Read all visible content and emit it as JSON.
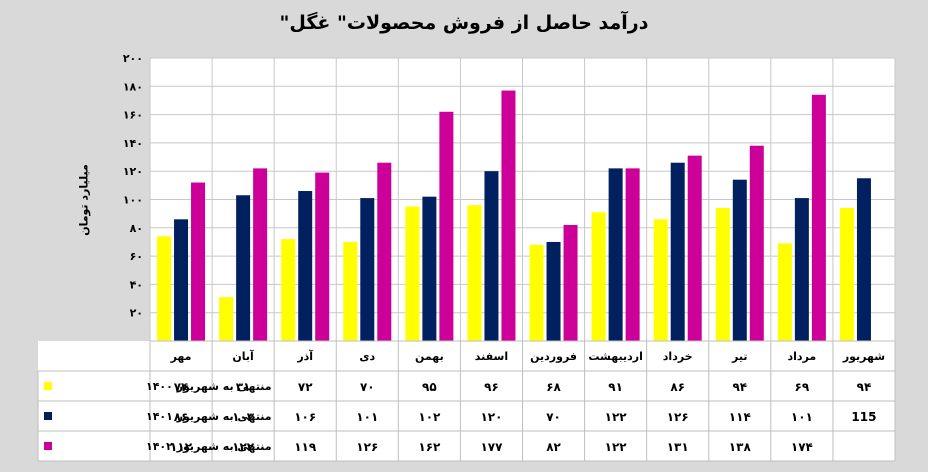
{
  "chart_data": {
    "type": "bar",
    "title": "درآمد حاصل از فروش محصولات\" غگل\"",
    "ylabel": "میلیارد تومان",
    "ylim": [
      0,
      200
    ],
    "ytick_values": [
      0,
      20,
      40,
      60,
      80,
      100,
      120,
      140,
      160,
      180,
      200
    ],
    "ytick_labels": [
      "۰",
      "۲۰",
      "۴۰",
      "۶۰",
      "۸۰",
      "۱۰۰",
      "۱۲۰",
      "۱۴۰",
      "۱۶۰",
      "۱۸۰",
      "۲۰۰"
    ],
    "categories": [
      "مهر",
      "آبان",
      "آذر",
      "دی",
      "بهمن",
      "اسفند",
      "فروردین",
      "اردیبهشت",
      "خرداد",
      "تیر",
      "مرداد",
      "شهریور"
    ],
    "series": [
      {
        "name": "منتهی به شهریور ۱۴۰۰",
        "color": "#ffff00",
        "values": [
          74,
          31,
          72,
          70,
          95,
          96,
          68,
          91,
          86,
          94,
          69,
          94
        ],
        "labels": [
          "۷۴",
          "۳۱",
          "۷۲",
          "۷۰",
          "۹۵",
          "۹۶",
          "۶۸",
          "۹۱",
          "۸۶",
          "۹۴",
          "۶۹",
          "۹۴"
        ]
      },
      {
        "name": "منتهی به شهریور ۱۴۰۱",
        "color": "#002060",
        "values": [
          86,
          103,
          106,
          101,
          102,
          120,
          70,
          122,
          126,
          114,
          101,
          115
        ],
        "labels": [
          "۸۶",
          "۱۰۳",
          "۱۰۶",
          "۱۰۱",
          "۱۰۲",
          "۱۲۰",
          "۷۰",
          "۱۲۲",
          "۱۲۶",
          "۱۱۴",
          "۱۰۱",
          "115"
        ]
      },
      {
        "name": "منتهی به شهریور ۱۴۰۲",
        "color": "#cc0099",
        "values": [
          112,
          122,
          119,
          126,
          162,
          177,
          82,
          122,
          131,
          138,
          174,
          null
        ],
        "labels": [
          "۱۱۲",
          "۱۲۲",
          "۱۱۹",
          "۱۲۶",
          "۱۶۲",
          "۱۷۷",
          "۸۲",
          "۱۲۲",
          "۱۳۱",
          "۱۳۸",
          "۱۷۴",
          ""
        ]
      }
    ],
    "grid": true,
    "legend": "data-table"
  }
}
